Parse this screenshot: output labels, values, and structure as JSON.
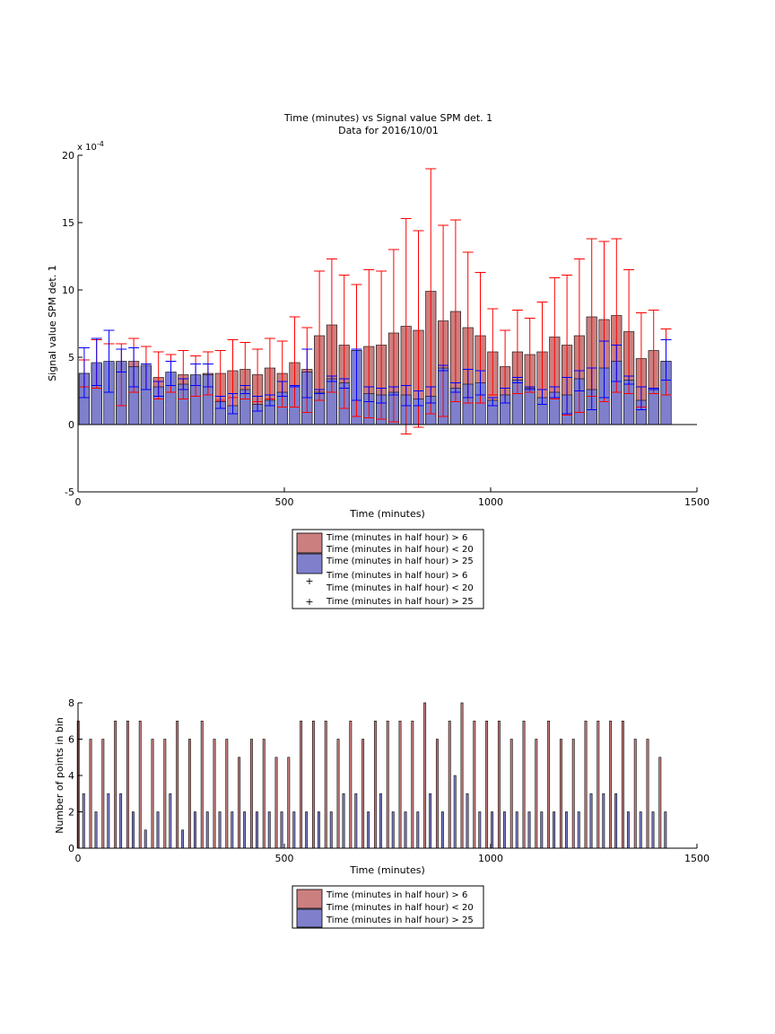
{
  "colors": {
    "red_bar": "#cc7f7f",
    "blue_bar": "#7f7fcc",
    "red_err": "#ff0000",
    "blue_err": "#0000ff",
    "axis": "#000000"
  },
  "chart_data": [
    {
      "type": "bar",
      "title": "Time (minutes) vs Signal value SPM det. 1",
      "subtitle": "Data for 2016/10/01",
      "xlabel": "Time (minutes)",
      "ylabel": "Signal value SPM det. 1",
      "y_exponent_label": "x 10",
      "y_exponent_power": "-4",
      "xlim": [
        0,
        1500
      ],
      "ylim": [
        -5,
        20
      ],
      "xticks": [
        "0",
        "500",
        "1000",
        "1500"
      ],
      "yticks": [
        "-5",
        "0",
        "5",
        "10",
        "15",
        "20"
      ],
      "grid": false,
      "legend_position": "below",
      "legend": [
        "Time (minutes in half hour) > 6",
        "Time (minutes in half hour) < 20",
        "Time (minutes in half hour) > 25",
        "Time (minutes in half hour) > 6",
        "Time (minutes in half hour) < 20",
        "Time (minutes in half hour) > 25"
      ],
      "x": [
        15,
        45,
        75,
        105,
        135,
        165,
        195,
        225,
        255,
        285,
        315,
        345,
        375,
        405,
        435,
        465,
        495,
        525,
        555,
        585,
        615,
        645,
        675,
        705,
        735,
        765,
        795,
        825,
        855,
        885,
        915,
        945,
        975,
        1005,
        1035,
        1065,
        1095,
        1125,
        1155,
        1185,
        1215,
        1245,
        1275,
        1305,
        1335,
        1365,
        1395,
        1425
      ],
      "series": [
        {
          "values": [
            3.8,
            4.5,
            4.6,
            4.6,
            4.7,
            4.3,
            3.5,
            3.8,
            3.7,
            3.6,
            3.8,
            3.8,
            4.0,
            4.1,
            3.7,
            4.2,
            3.8,
            4.6,
            4.1,
            6.6,
            7.4,
            5.9,
            5.5,
            5.8,
            5.9,
            6.8,
            7.3,
            7.0,
            9.9,
            7.7,
            8.4,
            7.2,
            6.6,
            5.4,
            4.3,
            5.4,
            5.2,
            5.4,
            6.5,
            5.9,
            6.6,
            8.0,
            7.8,
            8.1,
            6.9,
            4.9,
            5.5,
            4.7
          ],
          "err_low": [
            2.8,
            2.7,
            2.4,
            1.4,
            2.4,
            2.6,
            1.9,
            2.4,
            1.9,
            2.1,
            2.2,
            1.8,
            2.0,
            1.9,
            1.7,
            1.9,
            1.3,
            1.3,
            0.9,
            1.8,
            2.4,
            1.2,
            0.6,
            0.5,
            0.4,
            0.2,
            -0.7,
            -0.2,
            0.8,
            0.6,
            1.7,
            1.6,
            1.6,
            2.2,
            1.6,
            2.3,
            2.4,
            1.5,
            1.9,
            0.7,
            0.9,
            2.1,
            1.7,
            2.4,
            2.3,
            1.3,
            2.3,
            2.2
          ],
          "err_high": [
            4.8,
            6.3,
            6.0,
            6.0,
            6.4,
            5.8,
            5.4,
            5.2,
            5.5,
            5.1,
            5.4,
            5.5,
            6.3,
            6.1,
            5.6,
            6.4,
            6.2,
            8.0,
            7.2,
            11.4,
            12.3,
            11.1,
            10.4,
            11.5,
            11.4,
            13.0,
            15.3,
            14.4,
            19.0,
            14.8,
            15.2,
            12.8,
            11.3,
            8.6,
            7.0,
            8.5,
            7.9,
            9.1,
            10.9,
            11.1,
            12.3,
            13.8,
            13.6,
            13.8,
            11.5,
            8.3,
            8.5,
            7.1
          ]
        },
        {
          "values": [
            3.8,
            4.6,
            4.7,
            4.7,
            4.3,
            4.4,
            2.8,
            3.9,
            3.0,
            3.7,
            3.7,
            1.7,
            1.4,
            2.6,
            1.5,
            1.8,
            2.4,
            2.9,
            3.9,
            2.4,
            3.4,
            3.1,
            5.5,
            2.3,
            2.2,
            2.4,
            2.2,
            1.9,
            2.1,
            4.2,
            2.7,
            3.0,
            3.1,
            1.8,
            2.2,
            3.3,
            2.7,
            2.0,
            2.4,
            2.2,
            3.4,
            2.6,
            4.2,
            4.7,
            3.3,
            1.8,
            2.7,
            4.7
          ],
          "err_low": [
            2.0,
            2.9,
            2.4,
            3.9,
            2.8,
            2.6,
            2.1,
            2.9,
            2.6,
            2.9,
            2.8,
            1.2,
            0.8,
            2.3,
            1.0,
            1.4,
            2.1,
            2.8,
            2.0,
            2.3,
            3.2,
            2.7,
            1.8,
            1.7,
            1.6,
            2.2,
            1.4,
            1.4,
            1.6,
            4.0,
            2.4,
            2.0,
            2.2,
            1.4,
            1.6,
            3.1,
            2.6,
            1.5,
            2.0,
            0.8,
            2.5,
            1.1,
            2.0,
            3.2,
            3.0,
            1.1,
            2.6,
            3.3
          ],
          "err_high": [
            5.7,
            6.4,
            7.0,
            5.6,
            5.7,
            4.5,
            3.2,
            4.7,
            3.4,
            4.5,
            4.5,
            2.1,
            2.3,
            2.9,
            2.1,
            2.2,
            3.2,
            2.9,
            5.6,
            2.6,
            3.6,
            3.4,
            5.6,
            2.8,
            2.7,
            2.8,
            2.9,
            2.5,
            2.8,
            4.4,
            3.1,
            4.1,
            4.0,
            2.0,
            2.7,
            3.5,
            2.8,
            2.6,
            2.8,
            3.5,
            4.0,
            4.2,
            6.2,
            5.9,
            3.6,
            2.8,
            2.7,
            6.3
          ]
        }
      ]
    },
    {
      "type": "bar",
      "title": "",
      "xlabel": "Time (minutes)",
      "ylabel": "Number of points in bin",
      "xlim": [
        0,
        1500
      ],
      "ylim": [
        0,
        8
      ],
      "xticks": [
        "0",
        "500",
        "1000",
        "1500"
      ],
      "yticks": [
        "0",
        "2",
        "4",
        "6",
        "8"
      ],
      "grid": false,
      "legend_position": "below",
      "legend": [
        "Time (minutes in half hour) > 6",
        "Time (minutes in half hour) < 20",
        "Time (minutes in half hour) > 25"
      ],
      "x": [
        7,
        37,
        67,
        97,
        127,
        157,
        187,
        217,
        247,
        277,
        307,
        337,
        367,
        397,
        427,
        457,
        487,
        517,
        547,
        577,
        607,
        637,
        667,
        697,
        727,
        757,
        787,
        817,
        847,
        877,
        907,
        937,
        967,
        997,
        1027,
        1057,
        1087,
        1117,
        1147,
        1177,
        1207,
        1237,
        1267,
        1297,
        1327,
        1357,
        1387,
        1417
      ],
      "series": [
        {
          "values": [
            7,
            6,
            6,
            7,
            7,
            7,
            6,
            6,
            7,
            6,
            7,
            6,
            6,
            5,
            6,
            6,
            5,
            5,
            7,
            7,
            7,
            6,
            7,
            6,
            7,
            7,
            7,
            7,
            8,
            6,
            7,
            8,
            7,
            7,
            7,
            6,
            7,
            6,
            7,
            6,
            6,
            7,
            7,
            7,
            7,
            6,
            6,
            5
          ]
        },
        {
          "values": [
            3,
            2,
            3,
            3,
            2,
            1,
            2,
            3,
            1,
            2,
            2,
            2,
            2,
            2,
            2,
            2,
            2,
            2,
            2,
            2,
            2,
            3,
            3,
            2,
            3,
            2,
            2,
            2,
            3,
            2,
            4,
            3,
            2,
            2,
            2,
            2,
            2,
            2,
            2,
            2,
            2,
            3,
            3,
            3,
            2,
            2,
            2,
            2
          ]
        }
      ]
    }
  ]
}
